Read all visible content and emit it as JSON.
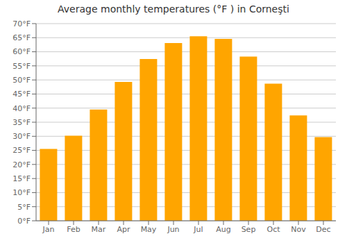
{
  "chart_data": {
    "type": "bar",
    "title": "Average monthly temperatures (°F ) in Corneşti",
    "categories": [
      "Jan",
      "Feb",
      "Mar",
      "Apr",
      "May",
      "Jun",
      "Jul",
      "Aug",
      "Sep",
      "Oct",
      "Nov",
      "Dec"
    ],
    "values": [
      25.5,
      30.2,
      39.5,
      49.3,
      57.4,
      63.1,
      65.5,
      64.6,
      58.3,
      48.7,
      37.4,
      29.7
    ],
    "color": "#FFA500",
    "ylim": [
      0,
      70
    ],
    "yticks": [
      {
        "value": 0,
        "label": "0°F"
      },
      {
        "value": 5,
        "label": "5°F"
      },
      {
        "value": 10,
        "label": "10°F"
      },
      {
        "value": 15,
        "label": "15°F"
      },
      {
        "value": 20,
        "label": "20°F"
      },
      {
        "value": 25,
        "label": "25°F"
      },
      {
        "value": 30,
        "label": "30°F"
      },
      {
        "value": 35,
        "label": "35°F"
      },
      {
        "value": 40,
        "label": "40°F"
      },
      {
        "value": 45,
        "label": "45°F"
      },
      {
        "value": 50,
        "label": "50°F"
      },
      {
        "value": 55,
        "label": "55°F"
      },
      {
        "value": 60,
        "label": "60°F"
      },
      {
        "value": 65,
        "label": "65°F"
      },
      {
        "value": 70,
        "label": "70°F"
      }
    ],
    "grid": true
  }
}
